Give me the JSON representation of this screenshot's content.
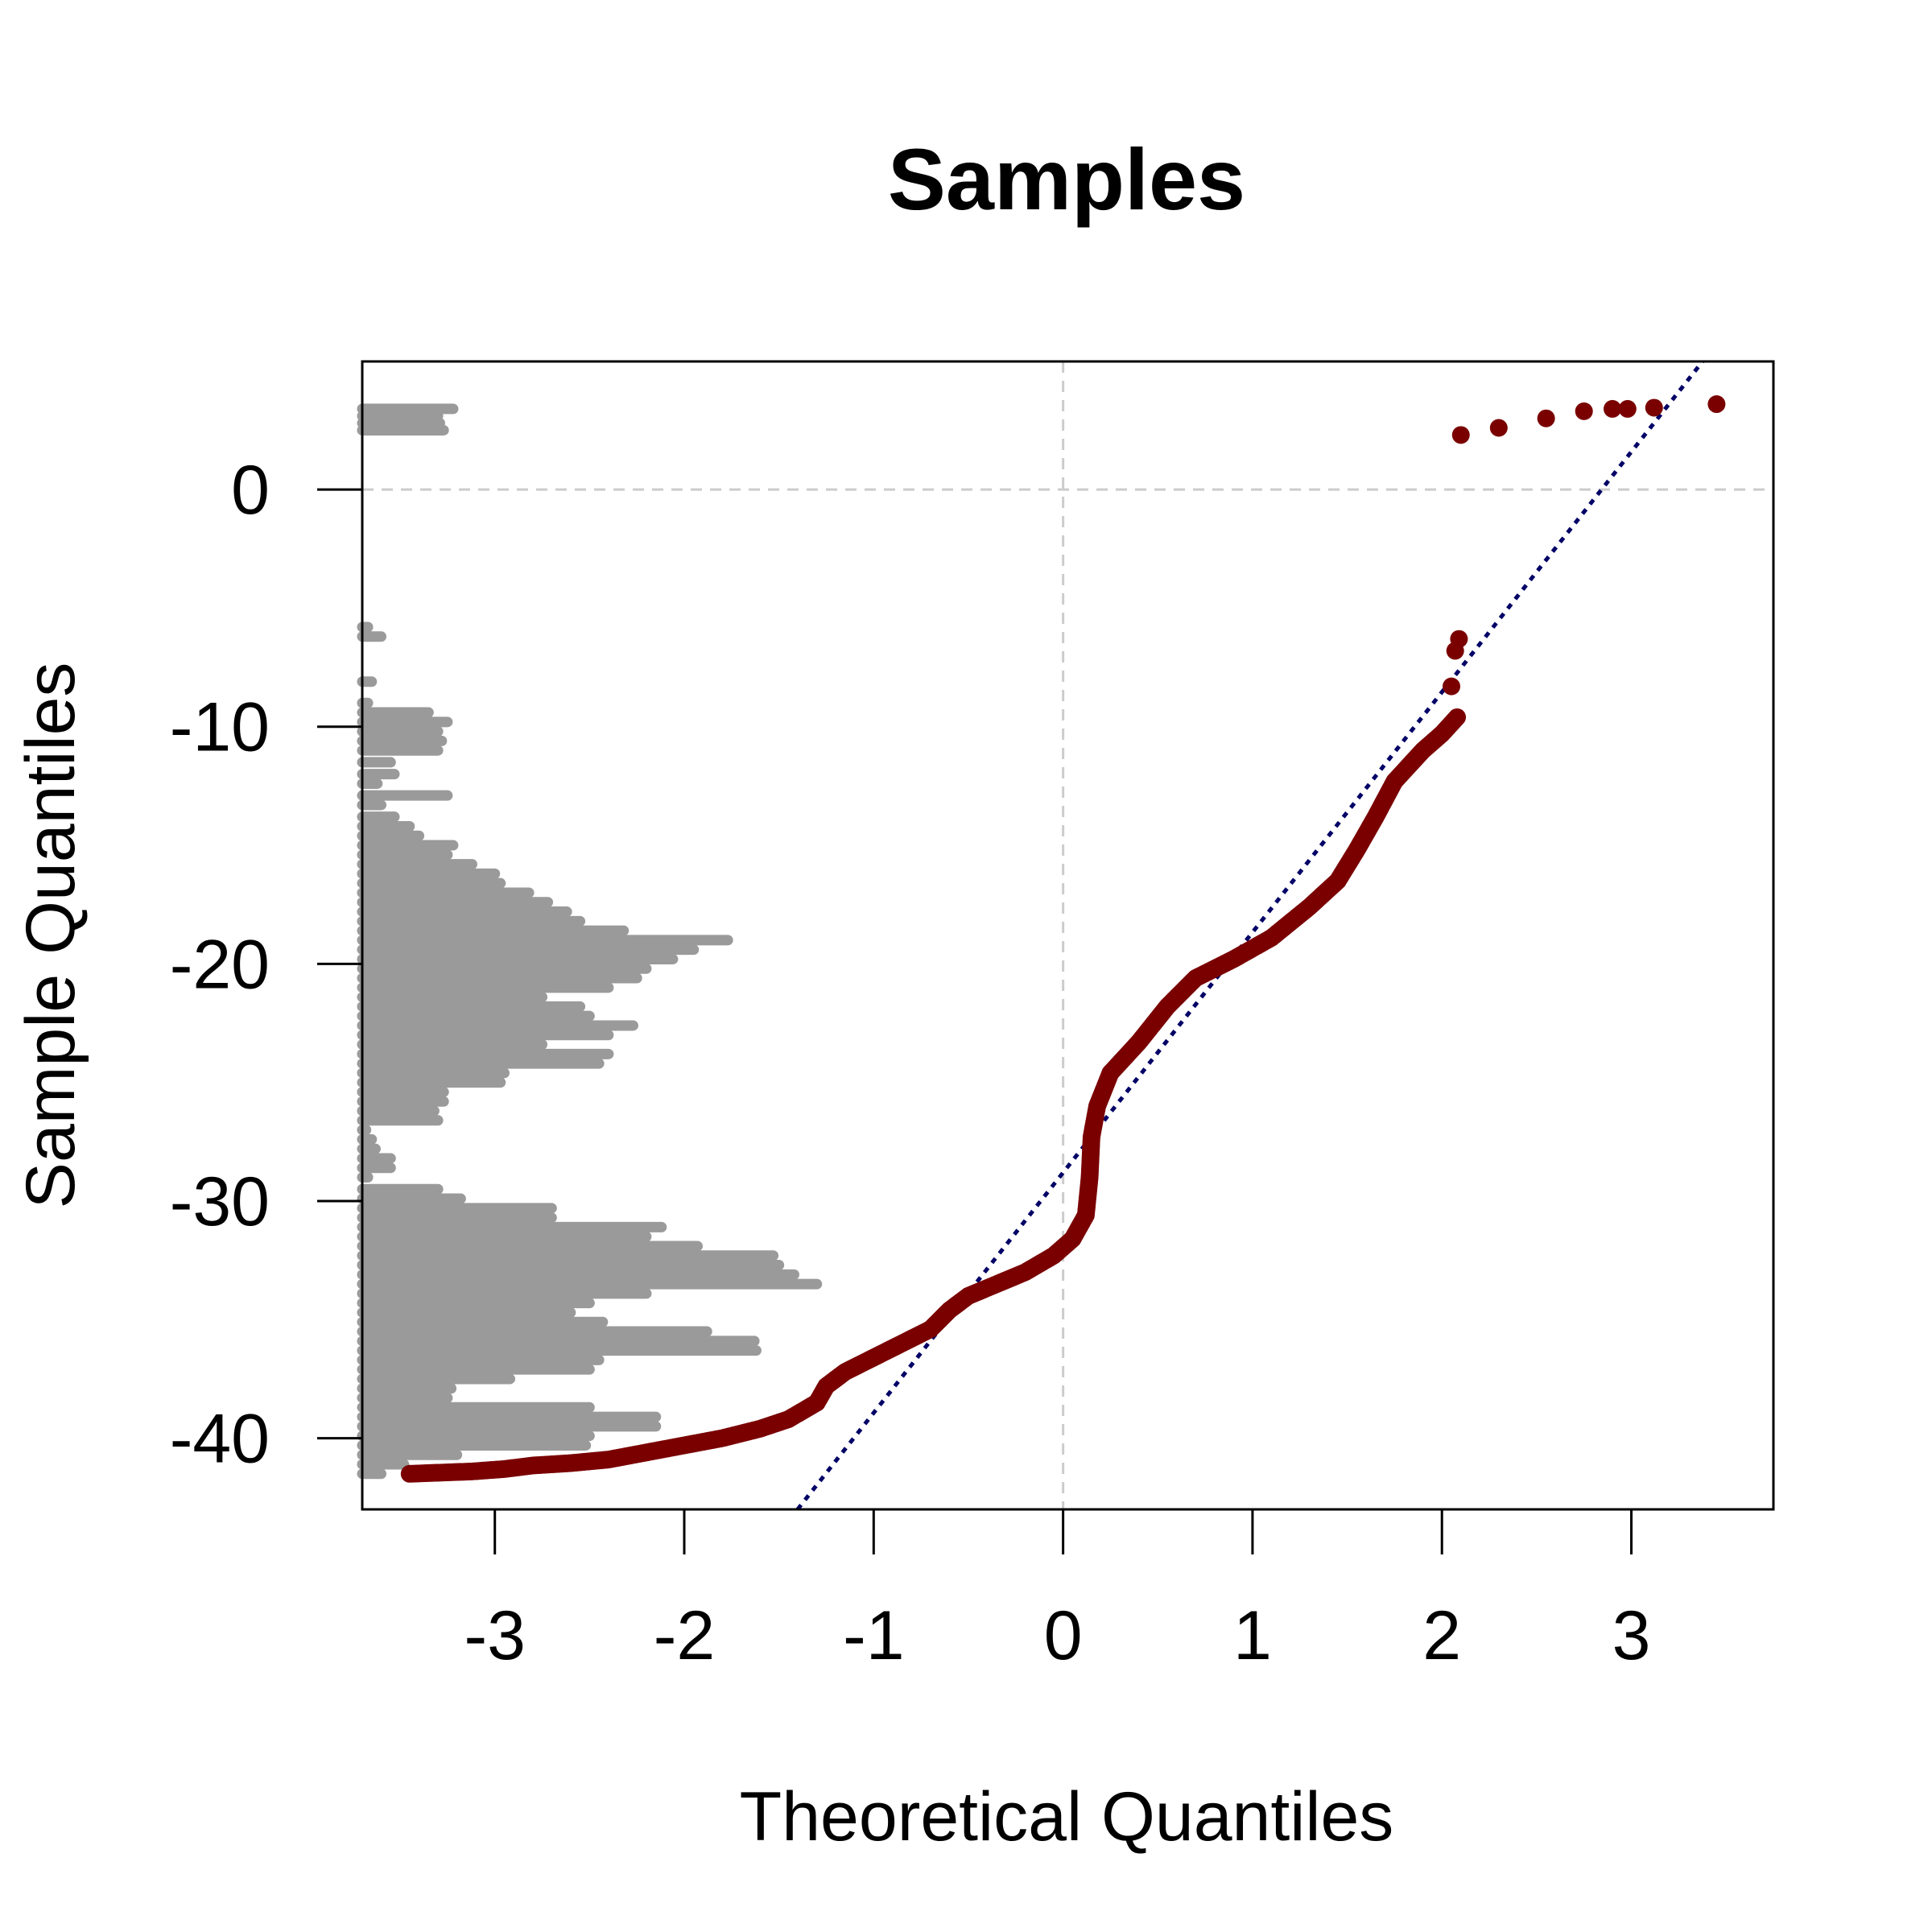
{
  "chart_data": {
    "type": "scatter",
    "title": "Samples",
    "xlabel": "Theoretical Quantiles",
    "ylabel": "Sample Quantiles",
    "xlim": [
      -3.7,
      3.75
    ],
    "ylim": [
      -43.0,
      5.4
    ],
    "x_ticks": [
      -3,
      -2,
      -1,
      0,
      1,
      2,
      3
    ],
    "y_ticks": [
      0,
      -10,
      -20,
      -30,
      -40
    ],
    "grid": "dashed lines at x = 0 and y = 0",
    "reference_line": {
      "style": "dotted",
      "color": "#000066",
      "slope": 10.13,
      "intercept": -28.8
    },
    "qq_points_color": "#7a0000",
    "histogram_color": "#9a9a9a",
    "qq_curve": [
      [
        -3.45,
        -41.5
      ],
      [
        -3.12,
        -41.4
      ],
      [
        -2.95,
        -41.3
      ],
      [
        -2.8,
        -41.15
      ],
      [
        -2.6,
        -41.05
      ],
      [
        -2.4,
        -40.9
      ],
      [
        -2.2,
        -40.6
      ],
      [
        -2.0,
        -40.3
      ],
      [
        -1.8,
        -40.0
      ],
      [
        -1.6,
        -39.6
      ],
      [
        -1.45,
        -39.2
      ],
      [
        -1.3,
        -38.5
      ],
      [
        -1.25,
        -37.8
      ],
      [
        -1.15,
        -37.2
      ],
      [
        -1.0,
        -36.6
      ],
      [
        -0.85,
        -36.0
      ],
      [
        -0.7,
        -35.4
      ],
      [
        -0.6,
        -34.6
      ],
      [
        -0.5,
        -34.0
      ],
      [
        -0.35,
        -33.5
      ],
      [
        -0.2,
        -33.0
      ],
      [
        -0.05,
        -32.3
      ],
      [
        0.05,
        -31.6
      ],
      [
        0.12,
        -30.6
      ],
      [
        0.14,
        -29.0
      ],
      [
        0.15,
        -27.3
      ],
      [
        0.18,
        -26.0
      ],
      [
        0.25,
        -24.6
      ],
      [
        0.4,
        -23.3
      ],
      [
        0.55,
        -21.8
      ],
      [
        0.7,
        -20.6
      ],
      [
        0.9,
        -19.8
      ],
      [
        1.1,
        -18.9
      ],
      [
        1.3,
        -17.6
      ],
      [
        1.45,
        -16.5
      ],
      [
        1.55,
        -15.2
      ],
      [
        1.65,
        -13.8
      ],
      [
        1.75,
        -12.3
      ],
      [
        1.9,
        -11.0
      ],
      [
        2.0,
        -10.3
      ],
      [
        2.08,
        -9.6
      ]
    ],
    "qq_outliers": [
      [
        2.05,
        -8.3
      ],
      [
        2.07,
        -6.8
      ],
      [
        2.09,
        -6.3
      ],
      [
        2.1,
        2.3
      ],
      [
        2.3,
        2.6
      ],
      [
        2.55,
        3.0
      ],
      [
        2.75,
        3.3
      ],
      [
        2.9,
        3.4
      ],
      [
        2.98,
        3.4
      ],
      [
        3.12,
        3.45
      ],
      [
        3.45,
        3.6
      ]
    ],
    "histogram_bins": [
      [
        3.4,
        0.48
      ],
      [
        3.1,
        0.4
      ],
      [
        2.8,
        0.41
      ],
      [
        2.5,
        0.43
      ],
      [
        -5.8,
        0.03
      ],
      [
        -6.2,
        0.1
      ],
      [
        -8.1,
        0.05
      ],
      [
        -9.0,
        0.03
      ],
      [
        -9.4,
        0.35
      ],
      [
        -9.8,
        0.45
      ],
      [
        -10.2,
        0.4
      ],
      [
        -10.6,
        0.42
      ],
      [
        -11.0,
        0.4
      ],
      [
        -11.5,
        0.15
      ],
      [
        -12.0,
        0.17
      ],
      [
        -12.4,
        0.08
      ],
      [
        -12.9,
        0.45
      ],
      [
        -13.3,
        0.1
      ],
      [
        -13.8,
        0.17
      ],
      [
        -14.2,
        0.25
      ],
      [
        -14.6,
        0.3
      ],
      [
        -15.0,
        0.48
      ],
      [
        -15.4,
        0.45
      ],
      [
        -15.8,
        0.58
      ],
      [
        -16.2,
        0.7
      ],
      [
        -16.6,
        0.73
      ],
      [
        -17.0,
        0.88
      ],
      [
        -17.4,
        0.98
      ],
      [
        -17.8,
        1.08
      ],
      [
        -18.2,
        1.15
      ],
      [
        -18.6,
        1.38
      ],
      [
        -19.0,
        1.93
      ],
      [
        -19.4,
        1.75
      ],
      [
        -19.8,
        1.64
      ],
      [
        -20.2,
        1.5
      ],
      [
        -20.6,
        1.45
      ],
      [
        -21.0,
        1.3
      ],
      [
        -21.4,
        0.95
      ],
      [
        -21.8,
        1.15
      ],
      [
        -22.2,
        1.2
      ],
      [
        -22.6,
        1.43
      ],
      [
        -23.0,
        1.3
      ],
      [
        -23.4,
        0.95
      ],
      [
        -23.8,
        1.3
      ],
      [
        -24.2,
        1.25
      ],
      [
        -24.6,
        0.75
      ],
      [
        -25.0,
        0.73
      ],
      [
        -25.4,
        0.43
      ],
      [
        -25.8,
        0.43
      ],
      [
        -26.2,
        0.38
      ],
      [
        -26.6,
        0.4
      ],
      [
        -27.0,
        0.02
      ],
      [
        -27.4,
        0.05
      ],
      [
        -27.8,
        0.07
      ],
      [
        -28.2,
        0.15
      ],
      [
        -28.6,
        0.15
      ],
      [
        -29.0,
        0.03
      ],
      [
        -29.5,
        0.4
      ],
      [
        -29.9,
        0.52
      ],
      [
        -30.3,
        1.0
      ],
      [
        -30.7,
        1.0
      ],
      [
        -31.1,
        1.58
      ],
      [
        -31.5,
        1.5
      ],
      [
        -31.9,
        1.77
      ],
      [
        -32.3,
        2.17
      ],
      [
        -32.7,
        2.2
      ],
      [
        -33.1,
        2.28
      ],
      [
        -33.5,
        2.4
      ],
      [
        -33.9,
        1.5
      ],
      [
        -34.3,
        1.2
      ],
      [
        -34.7,
        1.1
      ],
      [
        -35.1,
        1.27
      ],
      [
        -35.5,
        1.82
      ],
      [
        -35.9,
        2.07
      ],
      [
        -36.3,
        2.08
      ],
      [
        -36.7,
        1.25
      ],
      [
        -37.1,
        1.2
      ],
      [
        -37.5,
        0.78
      ],
      [
        -37.9,
        0.47
      ],
      [
        -38.3,
        0.45
      ],
      [
        -38.7,
        1.2
      ],
      [
        -39.1,
        1.55
      ],
      [
        -39.5,
        1.55
      ],
      [
        -39.9,
        1.2
      ],
      [
        -40.3,
        1.18
      ],
      [
        -40.7,
        0.5
      ],
      [
        -41.1,
        0.22
      ],
      [
        -41.5,
        0.1
      ]
    ]
  }
}
